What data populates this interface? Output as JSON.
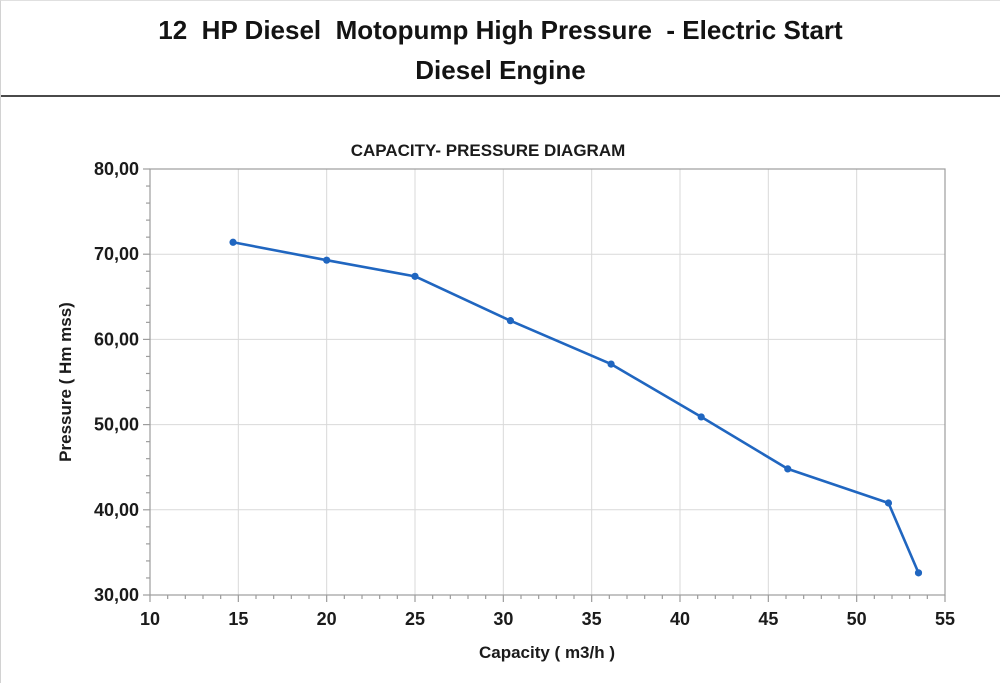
{
  "header": {
    "title_line1": "12  HP Diesel  Motopump High Pressure  - Electric Start",
    "title_line2": "Diesel Engine"
  },
  "chart_data": {
    "type": "line",
    "title": "CAPACITY- PRESSURE DIAGRAM",
    "xlabel": "Capacity ( m3/h )",
    "ylabel": "Pressure ( Hm mss)",
    "x": [
      14.7,
      20.0,
      25.0,
      30.4,
      36.1,
      41.2,
      46.1,
      51.8,
      53.5
    ],
    "y": [
      71.4,
      69.3,
      67.4,
      62.2,
      57.1,
      50.9,
      44.8,
      40.8,
      32.6
    ],
    "xlim": [
      10,
      55
    ],
    "ylim": [
      30,
      80
    ],
    "x_ticks": [
      10,
      15,
      20,
      25,
      30,
      35,
      40,
      45,
      50,
      55
    ],
    "y_ticks": [
      30,
      40,
      50,
      60,
      70,
      80
    ],
    "y_tick_labels": [
      "30,00",
      "40,00",
      "50,00",
      "60,00",
      "70,00",
      "80,00"
    ],
    "x_minor_step": 1,
    "y_minor_step": 2,
    "grid": true,
    "legend": "none",
    "marker": "circle",
    "colors": {
      "series": "#2066c0",
      "gridline": "#d9d9d9",
      "axis": "#9c9c9c",
      "text": "#1b1b1b",
      "divider": "#4a4a4a"
    }
  }
}
